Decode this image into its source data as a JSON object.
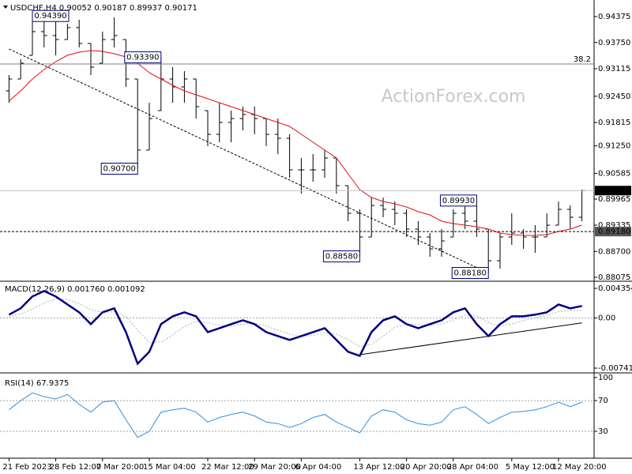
{
  "watermark": "ActionForex.com",
  "chart_data": [
    {
      "type": "ohlc",
      "title": "USDCHF,H4  0.90052 0.90187 0.89937 0.90171",
      "color": "#000000",
      "categories": [
        "21 Feb 2023",
        null,
        null,
        null,
        "28 Feb 12:00",
        null,
        null,
        null,
        "7 Mar 20:00",
        null,
        null,
        null,
        "15 Mar 04:00",
        null,
        null,
        null,
        null,
        "22 Mar 12:00",
        null,
        null,
        null,
        "29 Mar 20:00",
        null,
        null,
        null,
        "6 Apr 04:00",
        null,
        null,
        null,
        null,
        "13 Apr 12:00",
        null,
        null,
        null,
        "20 Apr 20:00",
        null,
        null,
        null,
        "28 Apr 04:00",
        null,
        null,
        null,
        null,
        "5 May 12:00",
        null,
        null,
        null,
        "12 May 20:00",
        null,
        null
      ],
      "open": [
        0.92581,
        0.92867,
        0.9344,
        0.94012,
        0.93917,
        0.93821,
        0.94108,
        0.93726,
        0.93249,
        0.93821,
        0.93821,
        0.92867,
        0.91149,
        0.92103,
        0.92867,
        0.92676,
        0.92867,
        0.92103,
        0.91531,
        0.91817,
        0.91912,
        0.92008,
        0.91912,
        0.91531,
        0.91435,
        0.90672,
        0.90672,
        0.90672,
        0.90958,
        0.9029,
        0.89622,
        0.89049,
        0.89812,
        0.89717,
        0.89622,
        0.8924,
        0.89049,
        0.88763,
        0.89049,
        0.89622,
        0.89431,
        0.8924,
        0.88476,
        0.89049,
        0.89144,
        0.89049,
        0.89049,
        0.89335,
        0.89717,
        0.89526
      ],
      "high": [
        0.92962,
        0.93344,
        0.9439,
        0.94356,
        0.94299,
        0.94203,
        0.94299,
        0.93726,
        0.94012,
        0.94356,
        0.93821,
        0.92867,
        0.92294,
        0.9339,
        0.93153,
        0.93058,
        0.92867,
        0.92103,
        0.92294,
        0.92103,
        0.92199,
        0.92199,
        0.91912,
        0.91912,
        0.91531,
        0.90958,
        0.91053,
        0.91149,
        0.90958,
        0.9029,
        0.89717,
        0.90003,
        0.90003,
        0.89908,
        0.89717,
        0.89431,
        0.89144,
        0.8924,
        0.89717,
        0.89908,
        0.8993,
        0.8924,
        0.89144,
        0.89622,
        0.8924,
        0.89335,
        0.89622,
        0.89908,
        0.89812,
        0.90194
      ],
      "low": [
        0.92294,
        0.92867,
        0.9344,
        0.9363,
        0.9344,
        0.93821,
        0.9363,
        0.92962,
        0.93249,
        0.9363,
        0.92676,
        0.907,
        0.91149,
        0.92103,
        0.92294,
        0.92294,
        0.91912,
        0.91244,
        0.9134,
        0.9134,
        0.91626,
        0.91531,
        0.91244,
        0.91053,
        0.90481,
        0.90099,
        0.90385,
        0.90481,
        0.90099,
        0.89431,
        0.8858,
        0.89049,
        0.89526,
        0.89335,
        0.89049,
        0.88858,
        0.88572,
        0.88572,
        0.89049,
        0.8924,
        0.89049,
        0.8818,
        0.88286,
        0.88858,
        0.88763,
        0.88667,
        0.89049,
        0.89335,
        0.8924,
        0.89431
      ],
      "close": [
        0.92867,
        0.93249,
        0.94012,
        0.93917,
        0.93821,
        0.94108,
        0.93726,
        0.93153,
        0.93821,
        0.93917,
        0.92867,
        0.91149,
        0.91912,
        0.92867,
        0.92676,
        0.92867,
        0.92199,
        0.91531,
        0.91817,
        0.91912,
        0.92008,
        0.91912,
        0.91531,
        0.91435,
        0.90672,
        0.90672,
        0.90672,
        0.90958,
        0.9029,
        0.89622,
        0.89049,
        0.89812,
        0.89717,
        0.89622,
        0.8924,
        0.89049,
        0.88763,
        0.88954,
        0.89622,
        0.89431,
        0.8924,
        0.88476,
        0.89049,
        0.89144,
        0.89049,
        0.89049,
        0.89335,
        0.89717,
        0.89526,
        0.90171
      ],
      "ma": {
        "color": "#e01010",
        "values": [
          0.92332,
          0.92581,
          0.92867,
          0.93096,
          0.93287,
          0.9344,
          0.93516,
          0.93554,
          0.93535,
          0.93478,
          0.93401,
          0.93249,
          0.9302,
          0.92867,
          0.92714,
          0.92581,
          0.92485,
          0.9239,
          0.92294,
          0.92199,
          0.92103,
          0.92008,
          0.91912,
          0.91817,
          0.91721,
          0.91531,
          0.9134,
          0.91149,
          0.90958,
          0.90576,
          0.90194,
          0.90003,
          0.89908,
          0.89851,
          0.89774,
          0.8966,
          0.89583,
          0.89431,
          0.89373,
          0.89335,
          0.89297,
          0.8924,
          0.89144,
          0.89106,
          0.89087,
          0.89087,
          0.89106,
          0.89183,
          0.8924,
          0.89335
        ]
      },
      "ylim": [
        0.88018,
        0.947
      ],
      "yticks": [
        0.94375,
        {
          "value": 0.9375,
          "label": "0.93750"
        },
        0.93115,
        {
          "value": 0.9245,
          "label": "0.92450"
        },
        0.91815,
        {
          "value": 0.9125,
          "label": "0.91250"
        },
        0.90585,
        0.89965,
        0.89335,
        {
          "value": 0.887,
          "label": "0.88700"
        },
        0.88075
      ],
      "levels": [
        {
          "value": 0.9323,
          "label": "38.2",
          "style": "fibo"
        },
        {
          "value": 0.90171,
          "label": "0.90171",
          "style": "current"
        },
        {
          "value": 0.8918,
          "label": "0.89180",
          "style": "dashed"
        }
      ],
      "annotations": [
        {
          "bar": 2,
          "align": "start",
          "value": 0.9439,
          "label": "0.94390"
        },
        {
          "bar": 13,
          "align": "end",
          "value": 0.9339,
          "label": "0.93390"
        },
        {
          "bar": 11,
          "align": "end",
          "value": 0.907,
          "label": "0.90700"
        },
        {
          "bar": 30,
          "align": "end",
          "value": 0.8858,
          "label": "0.88580"
        },
        {
          "bar": 41,
          "align": "end",
          "value": 0.8818,
          "label": "0.88180"
        },
        {
          "bar": 40,
          "align": "end",
          "value": 0.8993,
          "label": "0.89930"
        }
      ],
      "trendline": {
        "bars": [
          0,
          41
        ],
        "values": [
          0.93592,
          0.8818
        ]
      }
    },
    {
      "type": "macd",
      "title": "MACD(12,26,9) 0.001760 0.001092",
      "macd": {
        "color": "#000080",
        "values": [
          0.00047,
          0.0014,
          0.00315,
          0.00396,
          0.00315,
          0.00198,
          0.00082,
          -0.00093,
          0.00082,
          0.0014,
          -0.0021,
          -0.00676,
          -0.00501,
          -0.00093,
          0.00023,
          0.00082,
          0.00023,
          -0.0021,
          -0.00152,
          -0.00093,
          -0.00035,
          -0.00093,
          -0.0021,
          -0.00268,
          -0.00326,
          -0.00268,
          -0.0021,
          -0.00152,
          -0.00326,
          -0.00501,
          -0.0056,
          -0.0021,
          -0.00035,
          0.00023,
          -0.00093,
          -0.00152,
          -0.00093,
          -0.00035,
          0.00082,
          0.0014,
          -0.00093,
          -0.00268,
          -0.00093,
          0.00023,
          0.00023,
          0.00047,
          0.00082,
          0.00198,
          0.0014,
          0.00176
        ]
      },
      "signal": {
        "color": "#b0b0b0",
        "values": [
          0.0002,
          0.0006,
          0.0013,
          0.0022,
          0.0028,
          0.0027,
          0.0021,
          0.0012,
          0.0008,
          0.0009,
          0.0002,
          -0.0018,
          -0.0036,
          -0.0036,
          -0.0025,
          -0.0013,
          -0.0005,
          -0.0007,
          -0.0011,
          -0.0012,
          -0.0009,
          -0.0008,
          -0.0012,
          -0.0018,
          -0.0024,
          -0.0027,
          -0.0026,
          -0.0022,
          -0.0024,
          -0.0032,
          -0.0042,
          -0.0039,
          -0.0027,
          -0.0014,
          -0.0009,
          -0.001,
          -0.0011,
          -0.0009,
          -0.0003,
          0.0004,
          0.0003,
          -0.0007,
          -0.0012,
          -0.0009,
          -0.0004,
          0,
          0.0004,
          0.0009,
          0.0011,
          0.00109
        ]
      },
      "ylim": [
        -0.007883,
        0.00517
      ],
      "yticks": [
        0.004354,
        {
          "value": 0,
          "label": "0.00"
        },
        -0.007417
      ],
      "levels": [
        0
      ],
      "trendline": {
        "bars": [
          30,
          49
        ],
        "values": [
          -0.00543,
          -0.00075
        ]
      }
    },
    {
      "type": "line",
      "title": "RSI(14) 67.9375",
      "color": "#2f8fe0",
      "values": [
        58,
        70,
        80,
        75,
        72,
        78,
        65,
        55,
        68,
        70,
        45,
        22,
        30,
        55,
        58,
        60,
        55,
        42,
        48,
        52,
        55,
        50,
        42,
        40,
        35,
        40,
        48,
        52,
        42,
        35,
        28,
        50,
        58,
        55,
        45,
        40,
        38,
        42,
        58,
        62,
        52,
        40,
        48,
        55,
        56,
        58,
        62,
        68,
        62,
        68
      ],
      "ylim": [
        -5,
        104
      ],
      "yticks": [
        100,
        70,
        30
      ],
      "levels": [
        70,
        30
      ]
    }
  ]
}
